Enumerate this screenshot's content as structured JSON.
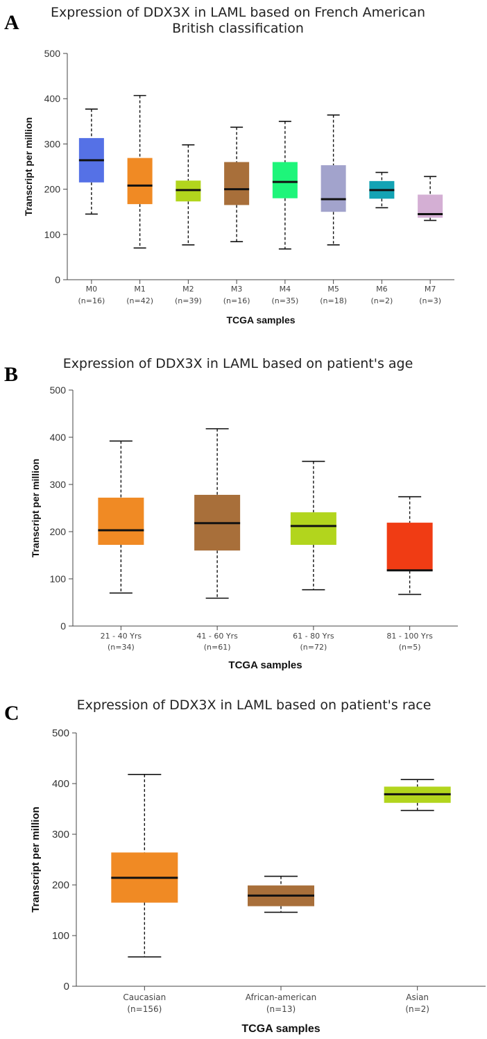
{
  "chart_data": [
    {
      "panel": "A",
      "type": "boxplot",
      "title": [
        "Expression of DDX3X in LAML based on French American",
        "British classification"
      ],
      "xlabel": "TCGA samples",
      "ylabel": "Transcript per million",
      "ylim": [
        0,
        500
      ],
      "yticks": [
        0,
        100,
        200,
        300,
        400,
        500
      ],
      "grid": false,
      "categories": [
        {
          "label": "M0",
          "n": "(n=16)",
          "color": "#5571e6",
          "min": 145,
          "q1": 215,
          "median": 264,
          "q3": 313,
          "max": 377
        },
        {
          "label": "M1",
          "n": "(n=42)",
          "color": "#f08a24",
          "min": 70,
          "q1": 167,
          "median": 208,
          "q3": 269,
          "max": 407
        },
        {
          "label": "M2",
          "n": "(n=39)",
          "color": "#b2d51d",
          "min": 77,
          "q1": 173,
          "median": 198,
          "q3": 219,
          "max": 298
        },
        {
          "label": "M3",
          "n": "(n=16)",
          "color": "#a86f3a",
          "min": 84,
          "q1": 165,
          "median": 200,
          "q3": 260,
          "max": 337
        },
        {
          "label": "M4",
          "n": "(n=35)",
          "color": "#1ef57a",
          "min": 68,
          "q1": 180,
          "median": 216,
          "q3": 260,
          "max": 350
        },
        {
          "label": "M5",
          "n": "(n=18)",
          "color": "#a2a3cc",
          "min": 77,
          "q1": 150,
          "median": 178,
          "q3": 253,
          "max": 364
        },
        {
          "label": "M6",
          "n": "(n=2)",
          "color": "#13a3b4",
          "min": 159,
          "q1": 179,
          "median": 198,
          "q3": 218,
          "max": 237
        },
        {
          "label": "M7",
          "n": "(n=3)",
          "color": "#d4afd4",
          "min": 131,
          "q1": 137,
          "median": 145,
          "q3": 188,
          "max": 228
        }
      ]
    },
    {
      "panel": "B",
      "type": "boxplot",
      "title": [
        "Expression of DDX3X in LAML based on patient's age"
      ],
      "xlabel": "TCGA samples",
      "ylabel": "Transcript per million",
      "ylim": [
        0,
        500
      ],
      "yticks": [
        0,
        100,
        200,
        300,
        400,
        500
      ],
      "grid": false,
      "categories": [
        {
          "label": "21 - 40 Yrs",
          "n": "(n=34)",
          "color": "#f08a24",
          "min": 70,
          "q1": 172,
          "median": 203,
          "q3": 272,
          "max": 392
        },
        {
          "label": "41 - 60 Yrs",
          "n": "(n=61)",
          "color": "#a86f3a",
          "min": 59,
          "q1": 160,
          "median": 218,
          "q3": 278,
          "max": 418
        },
        {
          "label": "61 - 80 Yrs",
          "n": "(n=72)",
          "color": "#b2d51d",
          "min": 77,
          "q1": 172,
          "median": 212,
          "q3": 241,
          "max": 349
        },
        {
          "label": "81 - 100 Yrs",
          "n": "(n=5)",
          "color": "#f03c14",
          "min": 67,
          "q1": 117,
          "median": 118,
          "q3": 219,
          "max": 274
        }
      ]
    },
    {
      "panel": "C",
      "type": "boxplot",
      "title": [
        "Expression of DDX3X in LAML based on patient's race"
      ],
      "xlabel": "TCGA samples",
      "ylabel": "Transcript per million",
      "ylim": [
        0,
        500
      ],
      "yticks": [
        0,
        100,
        200,
        300,
        400,
        500
      ],
      "grid": false,
      "categories": [
        {
          "label": "Caucasian",
          "n": "(n=156)",
          "color": "#f08a24",
          "min": 58,
          "q1": 165,
          "median": 214,
          "q3": 264,
          "max": 418
        },
        {
          "label": "African-american",
          "n": "(n=13)",
          "color": "#a86f3a",
          "min": 146,
          "q1": 158,
          "median": 179,
          "q3": 199,
          "max": 217
        },
        {
          "label": "Asian",
          "n": "(n=2)",
          "color": "#b2d51d",
          "min": 347,
          "q1": 362,
          "median": 379,
          "q3": 394,
          "max": 408
        }
      ]
    }
  ]
}
